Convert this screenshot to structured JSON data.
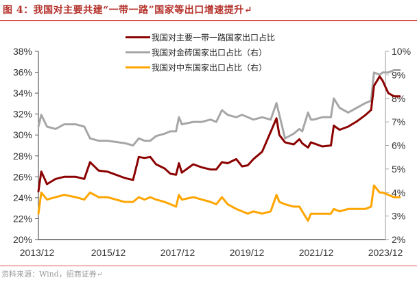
{
  "figure": {
    "title": "图 4：我国对主要共建“一带一路”国家等出口增速提升↵",
    "source": "资料来源：Wind，招商证券↵"
  },
  "chart_data": {
    "type": "line",
    "title": "我国对主要共建“一带一路”国家等出口增速提升",
    "xlabel": "",
    "x_ticks": [
      "2013/12",
      "2015/12",
      "2017/12",
      "2019/12",
      "2021/12",
      "2023/12"
    ],
    "y_left": {
      "label": "",
      "range": [
        20,
        38
      ],
      "ticks": [
        "20%",
        "22%",
        "24%",
        "26%",
        "28%",
        "30%",
        "32%",
        "34%",
        "36%",
        "38%"
      ]
    },
    "y_right": {
      "label": "",
      "range": [
        2,
        10
      ],
      "ticks": [
        "2%",
        "3%",
        "4%",
        "5%",
        "6%",
        "7%",
        "8%",
        "9%",
        "10%"
      ]
    },
    "grid": false,
    "legend_position": "top-center",
    "series": [
      {
        "name": "我国对主要一带一路国家出口占比",
        "axis": "left",
        "color": "#8b0000",
        "points": [
          [
            "2013/12",
            24.6
          ],
          [
            "2014/01",
            26.5
          ],
          [
            "2014/03",
            25.3
          ],
          [
            "2014/06",
            25.8
          ],
          [
            "2014/09",
            26.0
          ],
          [
            "2015/01",
            26.0
          ],
          [
            "2015/04",
            25.8
          ],
          [
            "2015/06",
            27.4
          ],
          [
            "2015/09",
            26.6
          ],
          [
            "2015/12",
            26.5
          ],
          [
            "2016/06",
            25.9
          ],
          [
            "2016/09",
            25.7
          ],
          [
            "2016/11",
            27.9
          ],
          [
            "2017/01",
            27.8
          ],
          [
            "2017/03",
            27.9
          ],
          [
            "2017/05",
            27.2
          ],
          [
            "2017/08",
            26.8
          ],
          [
            "2017/10",
            26.3
          ],
          [
            "2017/12",
            26.2
          ],
          [
            "2018/01",
            27.3
          ],
          [
            "2018/02",
            26.4
          ],
          [
            "2018/06",
            27.2
          ],
          [
            "2018/09",
            26.9
          ],
          [
            "2018/12",
            26.7
          ],
          [
            "2019/02",
            26.7
          ],
          [
            "2019/04",
            27.4
          ],
          [
            "2019/06",
            27.3
          ],
          [
            "2019/09",
            27.7
          ],
          [
            "2019/11",
            27.0
          ],
          [
            "2020/01",
            27.1
          ],
          [
            "2020/03",
            27.7
          ],
          [
            "2020/06",
            28.4
          ],
          [
            "2020/09",
            30.3
          ],
          [
            "2020/11",
            31.6
          ],
          [
            "2020/12",
            30.0
          ],
          [
            "2021/02",
            29.3
          ],
          [
            "2021/05",
            29.1
          ],
          [
            "2021/07",
            29.6
          ],
          [
            "2021/08",
            29.2
          ],
          [
            "2021/10",
            28.8
          ],
          [
            "2021/11",
            29.3
          ],
          [
            "2021/12",
            29.2
          ],
          [
            "2022/03",
            28.9
          ],
          [
            "2022/06",
            29.0
          ],
          [
            "2022/07",
            30.9
          ],
          [
            "2022/09",
            30.5
          ],
          [
            "2022/12",
            30.8
          ],
          [
            "2023/03",
            31.3
          ],
          [
            "2023/06",
            31.9
          ],
          [
            "2023/08",
            32.4
          ],
          [
            "2023/09",
            34.7
          ],
          [
            "2023/11",
            35.6
          ],
          [
            "2023/12",
            35.2
          ],
          [
            "2024/02",
            34.0
          ],
          [
            "2024/04",
            33.7
          ],
          [
            "2024/06",
            33.7
          ]
        ]
      },
      {
        "name": "我国对金砖国家出口占比（右）",
        "axis": "right",
        "color": "#a6a6a6",
        "points": [
          [
            "2013/12",
            6.8
          ],
          [
            "2014/01",
            7.3
          ],
          [
            "2014/03",
            6.8
          ],
          [
            "2014/06",
            6.7
          ],
          [
            "2014/09",
            6.9
          ],
          [
            "2015/01",
            6.9
          ],
          [
            "2015/04",
            6.8
          ],
          [
            "2015/06",
            6.3
          ],
          [
            "2015/09",
            6.2
          ],
          [
            "2015/12",
            6.2
          ],
          [
            "2016/06",
            6.1
          ],
          [
            "2016/09",
            6.0
          ],
          [
            "2016/11",
            6.3
          ],
          [
            "2017/01",
            6.2
          ],
          [
            "2017/03",
            6.2
          ],
          [
            "2017/05",
            6.4
          ],
          [
            "2017/08",
            6.5
          ],
          [
            "2017/10",
            6.6
          ],
          [
            "2017/12",
            6.6
          ],
          [
            "2018/01",
            7.2
          ],
          [
            "2018/02",
            6.9
          ],
          [
            "2018/06",
            7.0
          ],
          [
            "2018/09",
            7.0
          ],
          [
            "2018/12",
            7.1
          ],
          [
            "2019/02",
            7.0
          ],
          [
            "2019/04",
            7.5
          ],
          [
            "2019/06",
            7.3
          ],
          [
            "2019/09",
            7.2
          ],
          [
            "2019/11",
            7.3
          ],
          [
            "2020/01",
            7.2
          ],
          [
            "2020/03",
            7.1
          ],
          [
            "2020/06",
            7.2
          ],
          [
            "2020/09",
            7.1
          ],
          [
            "2020/11",
            7.8
          ],
          [
            "2020/12",
            7.3
          ],
          [
            "2021/02",
            6.3
          ],
          [
            "2021/05",
            6.5
          ],
          [
            "2021/07",
            6.7
          ],
          [
            "2021/08",
            6.6
          ],
          [
            "2021/10",
            7.4
          ],
          [
            "2021/11",
            7.1
          ],
          [
            "2021/12",
            7.1
          ],
          [
            "2022/03",
            7.2
          ],
          [
            "2022/06",
            7.2
          ],
          [
            "2022/07",
            8.0
          ],
          [
            "2022/09",
            7.6
          ],
          [
            "2022/12",
            7.4
          ],
          [
            "2023/03",
            7.6
          ],
          [
            "2023/06",
            7.8
          ],
          [
            "2023/08",
            7.9
          ],
          [
            "2023/09",
            9.1
          ],
          [
            "2023/11",
            9.0
          ],
          [
            "2023/12",
            9.1
          ],
          [
            "2024/02",
            9.1
          ],
          [
            "2024/04",
            9.2
          ],
          [
            "2024/06",
            9.2
          ]
        ]
      },
      {
        "name": "我国对中东国家出口占比（右）",
        "axis": "right",
        "color": "#ffa500",
        "points": [
          [
            "2013/12",
            3.1
          ],
          [
            "2014/01",
            4.0
          ],
          [
            "2014/03",
            3.7
          ],
          [
            "2014/06",
            3.8
          ],
          [
            "2014/09",
            3.9
          ],
          [
            "2015/01",
            3.8
          ],
          [
            "2015/04",
            3.7
          ],
          [
            "2015/06",
            4.0
          ],
          [
            "2015/09",
            3.8
          ],
          [
            "2015/12",
            3.8
          ],
          [
            "2016/06",
            3.6
          ],
          [
            "2016/09",
            3.6
          ],
          [
            "2016/11",
            3.8
          ],
          [
            "2017/01",
            3.7
          ],
          [
            "2017/03",
            3.8
          ],
          [
            "2017/05",
            3.7
          ],
          [
            "2017/08",
            3.6
          ],
          [
            "2017/10",
            3.5
          ],
          [
            "2017/12",
            3.4
          ],
          [
            "2018/01",
            3.9
          ],
          [
            "2018/02",
            3.7
          ],
          [
            "2018/06",
            3.8
          ],
          [
            "2018/09",
            3.7
          ],
          [
            "2018/12",
            3.6
          ],
          [
            "2019/02",
            3.5
          ],
          [
            "2019/04",
            3.8
          ],
          [
            "2019/06",
            3.5
          ],
          [
            "2019/09",
            3.3
          ],
          [
            "2019/11",
            3.2
          ],
          [
            "2020/01",
            3.1
          ],
          [
            "2020/03",
            3.2
          ],
          [
            "2020/06",
            3.1
          ],
          [
            "2020/09",
            3.2
          ],
          [
            "2020/11",
            3.9
          ],
          [
            "2020/12",
            3.6
          ],
          [
            "2021/02",
            3.5
          ],
          [
            "2021/05",
            3.4
          ],
          [
            "2021/07",
            3.4
          ],
          [
            "2021/08",
            3.2
          ],
          [
            "2021/10",
            2.8
          ],
          [
            "2021/11",
            3.1
          ],
          [
            "2021/12",
            3.1
          ],
          [
            "2022/03",
            3.1
          ],
          [
            "2022/06",
            3.1
          ],
          [
            "2022/07",
            3.3
          ],
          [
            "2022/09",
            3.2
          ],
          [
            "2022/12",
            3.3
          ],
          [
            "2023/03",
            3.3
          ],
          [
            "2023/06",
            3.3
          ],
          [
            "2023/08",
            3.4
          ],
          [
            "2023/09",
            4.3
          ],
          [
            "2023/11",
            4.0
          ],
          [
            "2023/12",
            4.0
          ],
          [
            "2024/02",
            3.9
          ],
          [
            "2024/04",
            3.8
          ],
          [
            "2024/06",
            3.8
          ]
        ]
      }
    ]
  },
  "legend": {
    "items": [
      {
        "label": "我国对主要一带一路国家出口占比",
        "color": "#8b0000"
      },
      {
        "label": "我国对金砖国家出口占比（右）",
        "color": "#a6a6a6"
      },
      {
        "label": "我国对中东国家出口占比（右）",
        "color": "#ffa500"
      }
    ]
  }
}
